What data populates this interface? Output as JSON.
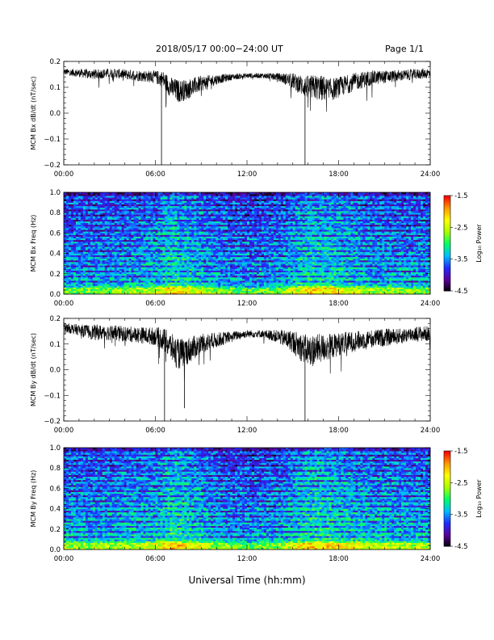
{
  "header": {
    "title": "2018/05/17  00:00−24:00 UT",
    "page": "Page 1/1"
  },
  "xaxis_label": "Universal Time (hh:mm)",
  "colorbar": {
    "label": "Log₁₀ Power",
    "ticks": [
      "-1.5",
      "-2.5",
      "-3.5",
      "-4.5"
    ],
    "range": [
      -4.5,
      -1.5
    ],
    "colormap": [
      "#000000",
      "#5a0099",
      "#1f2bff",
      "#00bfff",
      "#00ff66",
      "#a8ff00",
      "#ffff00",
      "#ff9900",
      "#ff0000"
    ]
  },
  "chart_data": [
    {
      "type": "line",
      "ylabel": "MCM Bx dB/dt (nT/sec)",
      "xlim": [
        0,
        24
      ],
      "ylim": [
        -0.2,
        0.2
      ],
      "xticks": [
        "00:00",
        "06:00",
        "12:00",
        "18:00",
        "24:00"
      ],
      "yticks": [
        "0.2",
        "0.1",
        "0.0",
        "−0.1",
        "−0.2"
      ],
      "x": [
        0,
        1,
        2,
        3,
        4,
        5,
        6,
        6.5,
        7,
        7.5,
        8,
        9,
        10,
        11,
        12,
        13,
        14,
        15,
        15.5,
        16,
        16.5,
        17,
        17.5,
        18,
        19,
        20,
        21,
        22,
        23,
        24
      ],
      "mean": [
        0.16,
        0.155,
        0.15,
        0.155,
        0.15,
        0.145,
        0.14,
        0.13,
        0.1,
        0.085,
        0.09,
        0.115,
        0.13,
        0.14,
        0.145,
        0.145,
        0.14,
        0.125,
        0.11,
        0.1,
        0.1,
        0.095,
        0.09,
        0.1,
        0.12,
        0.135,
        0.14,
        0.145,
        0.15,
        0.155
      ],
      "noise": [
        0.012,
        0.016,
        0.02,
        0.018,
        0.02,
        0.022,
        0.025,
        0.035,
        0.04,
        0.045,
        0.04,
        0.03,
        0.02,
        0.012,
        0.01,
        0.01,
        0.015,
        0.03,
        0.04,
        0.045,
        0.05,
        0.05,
        0.045,
        0.04,
        0.035,
        0.03,
        0.025,
        0.022,
        0.02,
        0.02
      ],
      "spikes": [
        [
          6.4,
          -0.2
        ],
        [
          15.8,
          -0.2
        ]
      ]
    },
    {
      "type": "heatmap",
      "ylabel": "MCM Bx Freq (Hz)",
      "xlim": [
        0,
        24
      ],
      "ylim": [
        0.0,
        1.0
      ],
      "xticks": [
        "00:00",
        "06:00",
        "12:00",
        "18:00",
        "24:00"
      ],
      "yticks": [
        "1.0",
        "0.8",
        "0.6",
        "0.4",
        "0.2",
        "0.0"
      ],
      "colorbar": "Log₁₀ Power",
      "harmonic_lines_hz": [
        0.05,
        0.1,
        0.15,
        0.2,
        0.25,
        0.3,
        0.35,
        0.4,
        0.45,
        0.5,
        0.55,
        0.6,
        0.65,
        0.7,
        0.75,
        0.8,
        0.85,
        0.9,
        0.95
      ],
      "activity_x": [
        0,
        3,
        6,
        7,
        8,
        10,
        12,
        14,
        15,
        16,
        17,
        18,
        20,
        22,
        24
      ],
      "activity": [
        0.35,
        0.35,
        0.5,
        0.8,
        0.7,
        0.35,
        0.25,
        0.35,
        0.55,
        0.75,
        0.75,
        0.65,
        0.45,
        0.4,
        0.35
      ]
    },
    {
      "type": "line",
      "ylabel": "MCM By dB/dt (nT/sec)",
      "xlim": [
        0,
        24
      ],
      "ylim": [
        -0.2,
        0.2
      ],
      "xticks": [
        "00:00",
        "06:00",
        "12:00",
        "18:00",
        "24:00"
      ],
      "yticks": [
        "0.2",
        "0.1",
        "0.0",
        "−0.1",
        "−0.2"
      ],
      "x": [
        0,
        1,
        2,
        3,
        4,
        5,
        6,
        6.5,
        7,
        7.5,
        8,
        9,
        10,
        11,
        12,
        13,
        14,
        15,
        15.5,
        16,
        16.5,
        17,
        17.5,
        18,
        19,
        20,
        21,
        22,
        23,
        24
      ],
      "mean": [
        0.165,
        0.155,
        0.145,
        0.145,
        0.14,
        0.135,
        0.13,
        0.12,
        0.09,
        0.06,
        0.07,
        0.1,
        0.115,
        0.13,
        0.14,
        0.14,
        0.13,
        0.11,
        0.09,
        0.075,
        0.08,
        0.085,
        0.09,
        0.1,
        0.11,
        0.12,
        0.125,
        0.13,
        0.14,
        0.14
      ],
      "noise": [
        0.018,
        0.022,
        0.03,
        0.03,
        0.03,
        0.032,
        0.035,
        0.045,
        0.055,
        0.06,
        0.055,
        0.04,
        0.03,
        0.02,
        0.015,
        0.015,
        0.025,
        0.045,
        0.055,
        0.06,
        0.06,
        0.055,
        0.05,
        0.045,
        0.04,
        0.035,
        0.035,
        0.03,
        0.03,
        0.03
      ],
      "spikes": [
        [
          6.6,
          -0.2
        ],
        [
          7.9,
          -0.15
        ],
        [
          15.8,
          -0.2
        ]
      ]
    },
    {
      "type": "heatmap",
      "ylabel": "MCM By Freq (Hz)",
      "xlim": [
        0,
        24
      ],
      "ylim": [
        0.0,
        1.0
      ],
      "xticks": [
        "00:00",
        "06:00",
        "12:00",
        "18:00",
        "24:00"
      ],
      "yticks": [
        "1.0",
        "0.8",
        "0.6",
        "0.4",
        "0.2",
        "0.0"
      ],
      "colorbar": "Log₁₀ Power",
      "harmonic_lines_hz": [
        0.05,
        0.1,
        0.15,
        0.2,
        0.25,
        0.3,
        0.35,
        0.4,
        0.45,
        0.5,
        0.55,
        0.6,
        0.65,
        0.7,
        0.75,
        0.8,
        0.85,
        0.9,
        0.95
      ],
      "activity_x": [
        0,
        3,
        6,
        7,
        8,
        10,
        12,
        14,
        15,
        16,
        17,
        18,
        20,
        22,
        24
      ],
      "activity": [
        0.45,
        0.45,
        0.55,
        0.85,
        0.75,
        0.4,
        0.3,
        0.4,
        0.6,
        0.8,
        0.8,
        0.7,
        0.55,
        0.5,
        0.45
      ]
    }
  ]
}
